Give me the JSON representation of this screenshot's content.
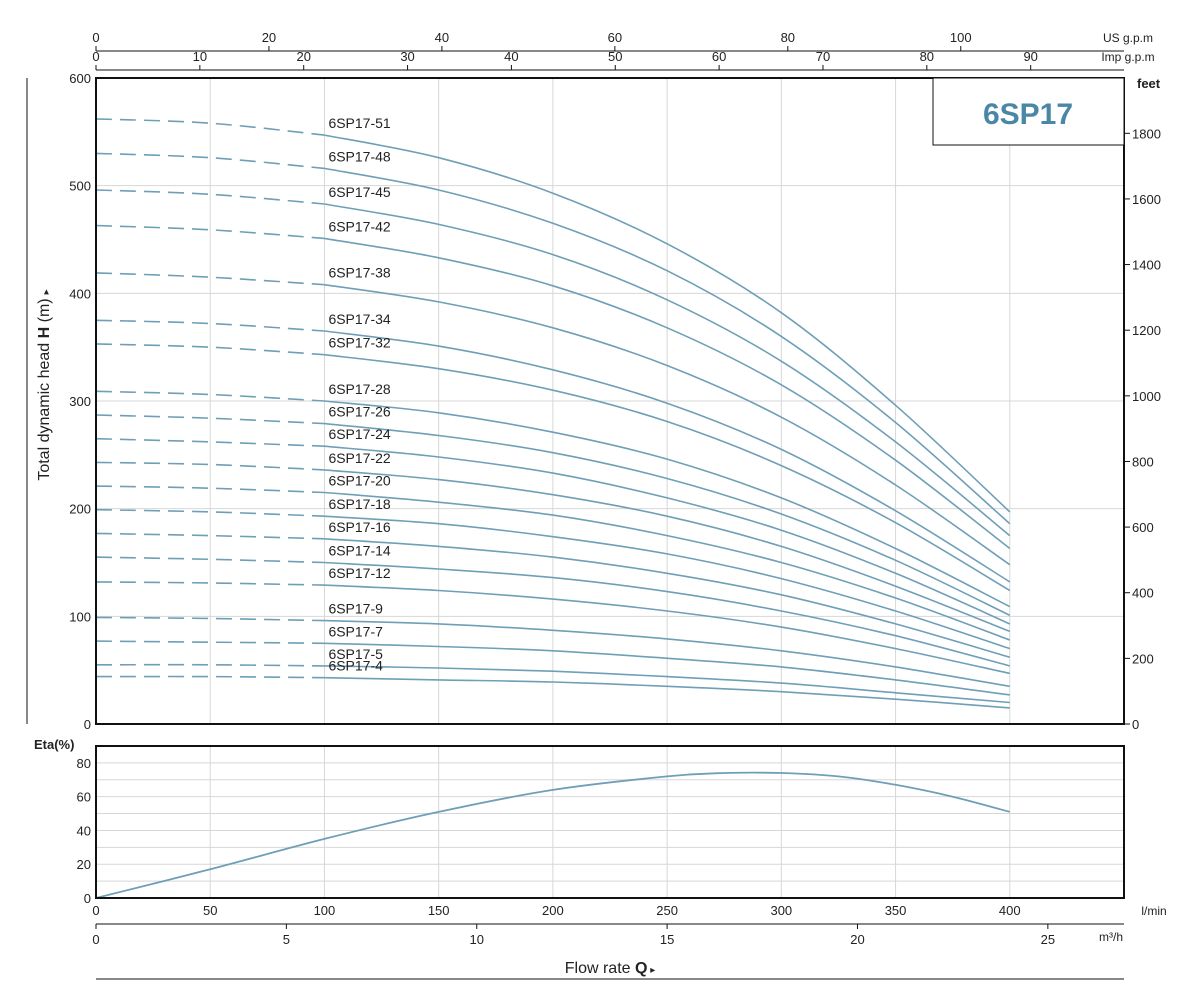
{
  "chart_data": [
    {
      "type": "line",
      "title": "6SP17",
      "ylabel_parts": [
        "Total dynamic head ",
        "H",
        " (m)"
      ],
      "ylabel_arrow": "▸",
      "y2label": "feet",
      "xlim_lmin": [
        0,
        450
      ],
      "ylim": [
        0,
        600
      ],
      "y_ticks": [
        0,
        100,
        200,
        300,
        400,
        500,
        600
      ],
      "y2_ticks": [
        0,
        200,
        400,
        600,
        800,
        1000,
        1200,
        1400,
        1600,
        1800
      ],
      "top_axes": [
        {
          "unit": "US g.p.m",
          "ticks": [
            0,
            20,
            40,
            60,
            80,
            100
          ],
          "per_lmin": 0.264172
        },
        {
          "unit": "Imp g.p.m",
          "ticks": [
            0,
            10,
            20,
            30,
            40,
            50,
            60,
            70,
            80,
            90
          ],
          "per_lmin": 0.219969
        }
      ],
      "series": [
        {
          "name": "6SP17-51",
          "x": [
            0,
            50,
            100,
            150,
            200,
            250,
            300,
            350,
            400
          ],
          "y": [
            562,
            558,
            547,
            526,
            493,
            446,
            382,
            296,
            197
          ]
        },
        {
          "name": "6SP17-48",
          "x": [
            0,
            50,
            100,
            150,
            200,
            250,
            300,
            350,
            400
          ],
          "y": [
            530,
            526,
            516,
            496,
            465,
            421,
            360,
            280,
            186
          ]
        },
        {
          "name": "6SP17-45",
          "x": [
            0,
            50,
            100,
            150,
            200,
            250,
            300,
            350,
            400
          ],
          "y": [
            496,
            492,
            483,
            464,
            436,
            394,
            337,
            262,
            175
          ]
        },
        {
          "name": "6SP17-42",
          "x": [
            0,
            50,
            100,
            150,
            200,
            250,
            300,
            350,
            400
          ],
          "y": [
            463,
            459,
            451,
            433,
            407,
            368,
            315,
            245,
            163
          ]
        },
        {
          "name": "6SP17-38",
          "x": [
            0,
            50,
            100,
            150,
            200,
            250,
            300,
            350,
            400
          ],
          "y": [
            419,
            415,
            408,
            392,
            368,
            333,
            285,
            222,
            148
          ]
        },
        {
          "name": "6SP17-34",
          "x": [
            0,
            50,
            100,
            150,
            200,
            250,
            300,
            350,
            400
          ],
          "y": [
            375,
            372,
            365,
            351,
            329,
            298,
            255,
            198,
            132
          ]
        },
        {
          "name": "6SP17-32",
          "x": [
            0,
            50,
            100,
            150,
            200,
            250,
            300,
            350,
            400
          ],
          "y": [
            353,
            350,
            343,
            330,
            310,
            281,
            240,
            187,
            124
          ]
        },
        {
          "name": "6SP17-28",
          "x": [
            0,
            50,
            100,
            150,
            200,
            250,
            300,
            350,
            400
          ],
          "y": [
            309,
            306,
            300,
            289,
            271,
            246,
            210,
            163,
            109
          ]
        },
        {
          "name": "6SP17-26",
          "x": [
            0,
            50,
            100,
            150,
            200,
            250,
            300,
            350,
            400
          ],
          "y": [
            287,
            284,
            279,
            268,
            252,
            228,
            195,
            152,
            101
          ]
        },
        {
          "name": "6SP17-24",
          "x": [
            0,
            50,
            100,
            150,
            200,
            250,
            300,
            350,
            400
          ],
          "y": [
            265,
            262,
            258,
            248,
            233,
            210,
            180,
            140,
            93
          ]
        },
        {
          "name": "6SP17-22",
          "x": [
            0,
            50,
            100,
            150,
            200,
            250,
            300,
            350,
            400
          ],
          "y": [
            243,
            241,
            236,
            227,
            213,
            193,
            165,
            128,
            86
          ]
        },
        {
          "name": "6SP17-20",
          "x": [
            0,
            50,
            100,
            150,
            200,
            250,
            300,
            350,
            400
          ],
          "y": [
            221,
            219,
            215,
            206,
            194,
            175,
            150,
            117,
            78
          ]
        },
        {
          "name": "6SP17-18",
          "x": [
            0,
            50,
            100,
            150,
            200,
            250,
            300,
            350,
            400
          ],
          "y": [
            199,
            197,
            193,
            186,
            174,
            158,
            135,
            105,
            70
          ]
        },
        {
          "name": "6SP17-16",
          "x": [
            0,
            50,
            100,
            150,
            200,
            250,
            300,
            350,
            400
          ],
          "y": [
            177,
            175,
            172,
            165,
            155,
            140,
            120,
            93,
            62
          ]
        },
        {
          "name": "6SP17-14",
          "x": [
            0,
            50,
            100,
            150,
            200,
            250,
            300,
            350,
            400
          ],
          "y": [
            155,
            153,
            150,
            144,
            136,
            123,
            105,
            82,
            54
          ]
        },
        {
          "name": "6SP17-12",
          "x": [
            0,
            50,
            100,
            150,
            200,
            250,
            300,
            350,
            400
          ],
          "y": [
            132,
            131,
            129,
            124,
            116,
            105,
            90,
            70,
            47
          ]
        },
        {
          "name": "6SP17-9",
          "x": [
            0,
            50,
            100,
            150,
            200,
            250,
            300,
            350,
            400
          ],
          "y": [
            99,
            98,
            96,
            93,
            87,
            79,
            68,
            53,
            35
          ]
        },
        {
          "name": "6SP17-7",
          "x": [
            0,
            50,
            100,
            150,
            200,
            250,
            300,
            350,
            400
          ],
          "y": [
            77,
            76,
            75,
            72,
            68,
            61,
            53,
            41,
            27
          ]
        },
        {
          "name": "6SP17-5",
          "x": [
            0,
            50,
            100,
            150,
            200,
            250,
            300,
            350,
            400
          ],
          "y": [
            55,
            55,
            54,
            52,
            49,
            44,
            38,
            29,
            20
          ]
        },
        {
          "name": "6SP17-4",
          "x": [
            0,
            50,
            100,
            150,
            200,
            250,
            300,
            350,
            400
          ],
          "y": [
            44,
            44,
            43,
            41,
            39,
            35,
            30,
            23,
            15
          ]
        }
      ],
      "dashed_until_lmin": 100,
      "grid": true
    },
    {
      "type": "line",
      "ylabel": "Eta(%)",
      "ylim": [
        0,
        90
      ],
      "y_ticks": [
        0,
        20,
        40,
        60,
        80
      ],
      "series": [
        {
          "x": [
            0,
            50,
            100,
            150,
            200,
            250,
            275,
            300,
            325,
            350,
            375,
            400
          ],
          "y": [
            0,
            17,
            35,
            51,
            64,
            72,
            74,
            74,
            72,
            67,
            60,
            51
          ]
        }
      ],
      "grid": true
    }
  ],
  "x_axes": [
    {
      "unit": "l/min",
      "ticks": [
        0,
        50,
        100,
        150,
        200,
        250,
        300,
        350,
        400
      ]
    },
    {
      "unit": "m³/h",
      "ticks": [
        0,
        5,
        10,
        15,
        20,
        25
      ],
      "per_lmin": 0.06
    }
  ],
  "xlabel_parts": [
    "Flow  rate  ",
    "Q",
    "  ▸"
  ],
  "colors": {
    "curve": "#6e9fb7",
    "model": "#4a87a6",
    "grid": "#d7d7d7"
  }
}
